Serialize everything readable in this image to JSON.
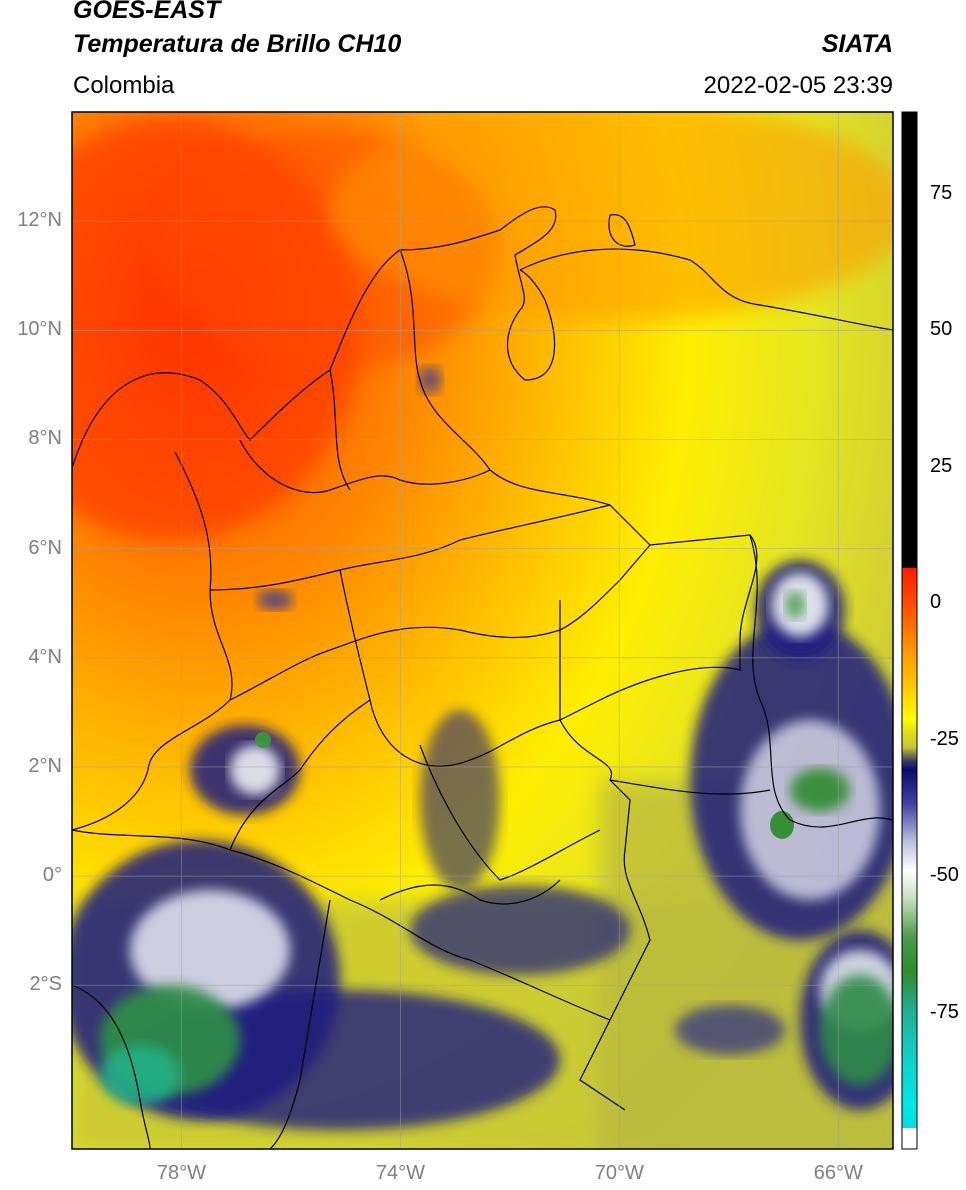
{
  "header": {
    "line1": "GOES-EAST",
    "line2": "Temperatura de Brillo CH10",
    "region": "Colombia",
    "source": "SIATA",
    "datetime": "2022-02-05 23:39"
  },
  "map": {
    "lat_labels": [
      "12°N",
      "10°N",
      "8°N",
      "6°N",
      "4°N",
      "2°N",
      "0°",
      "2°S"
    ],
    "lat_values": [
      12,
      10,
      8,
      6,
      4,
      2,
      0,
      -2
    ],
    "lon_labels": [
      "78°W",
      "74°W",
      "70°W",
      "66°W"
    ],
    "lon_values": [
      -78,
      -74,
      -70,
      -66
    ],
    "lon_range": [
      -80,
      -65
    ],
    "lat_range": [
      -5,
      14
    ],
    "gridlines": true
  },
  "colorbar": {
    "tick_labels": [
      "75",
      "50",
      "25",
      "0",
      "-25",
      "-50",
      "-75"
    ],
    "tick_values": [
      75,
      50,
      25,
      0,
      -25,
      -50,
      -75
    ],
    "range": [
      -100,
      90
    ],
    "colors": {
      "black": "#000000",
      "red": "#ff2a00",
      "orange": "#ff8c00",
      "yellow": "#ffff00",
      "olive": "#c8c832",
      "navy": "#101070",
      "white": "#ffffff",
      "green": "#2e8b2e",
      "cyan": "#00dcdc"
    }
  }
}
